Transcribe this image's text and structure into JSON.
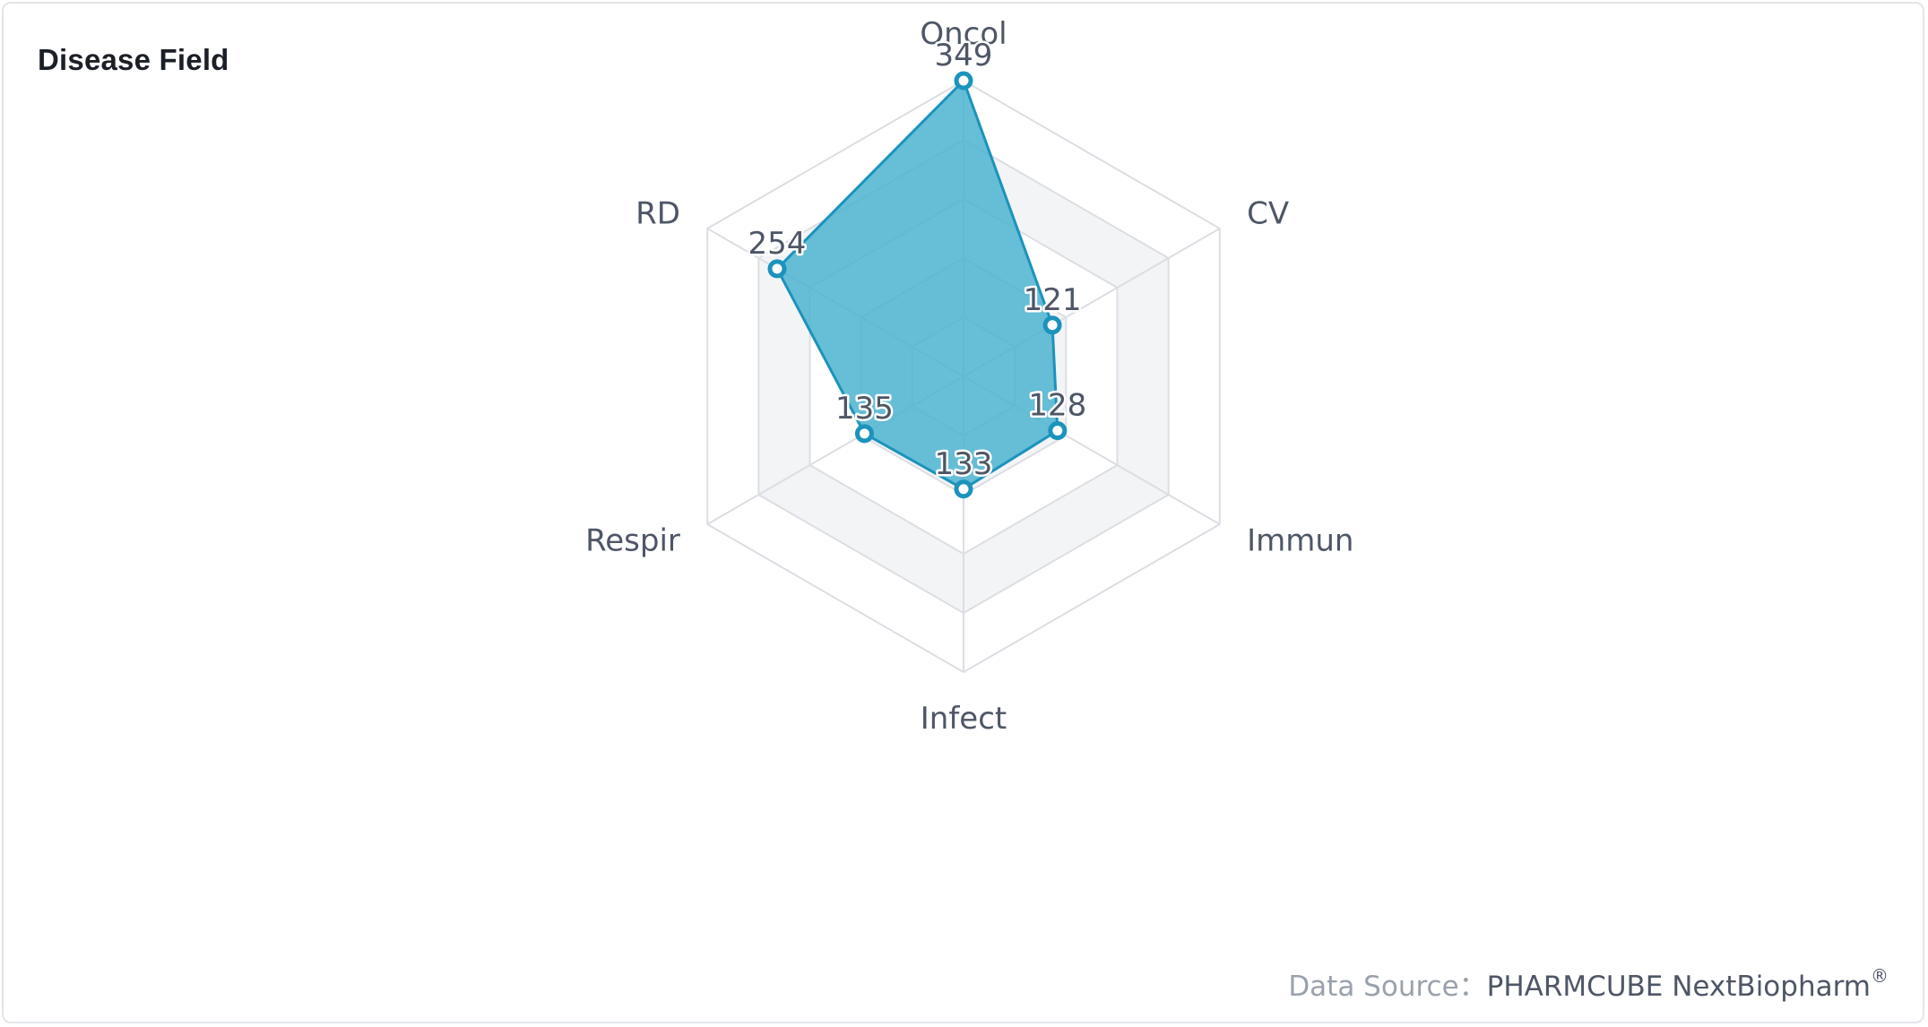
{
  "card": {
    "title": "Disease Field"
  },
  "chart_data": {
    "type": "radar",
    "title": "Disease Field",
    "axes": [
      "Oncol",
      "CV",
      "Immun",
      "Infect",
      "Respir",
      "RD"
    ],
    "series": [
      {
        "values": [
          349,
          121,
          128,
          133,
          135,
          254
        ]
      }
    ],
    "range": [
      0,
      349
    ],
    "grid_levels": 5,
    "grid_shape": "hexagon",
    "alternating_band_fill": true,
    "colors": {
      "area_fill": "#4cb3d0",
      "line": "#1b93bc",
      "point_fill": "#ffffff",
      "grid_line": "#dcdee4",
      "band_fill": "#f3f4f6"
    }
  },
  "footer": {
    "source_label": "Data Source",
    "separator": "：",
    "source_name": "PHARMCUBE NextBiopharm",
    "trademark": "®"
  }
}
